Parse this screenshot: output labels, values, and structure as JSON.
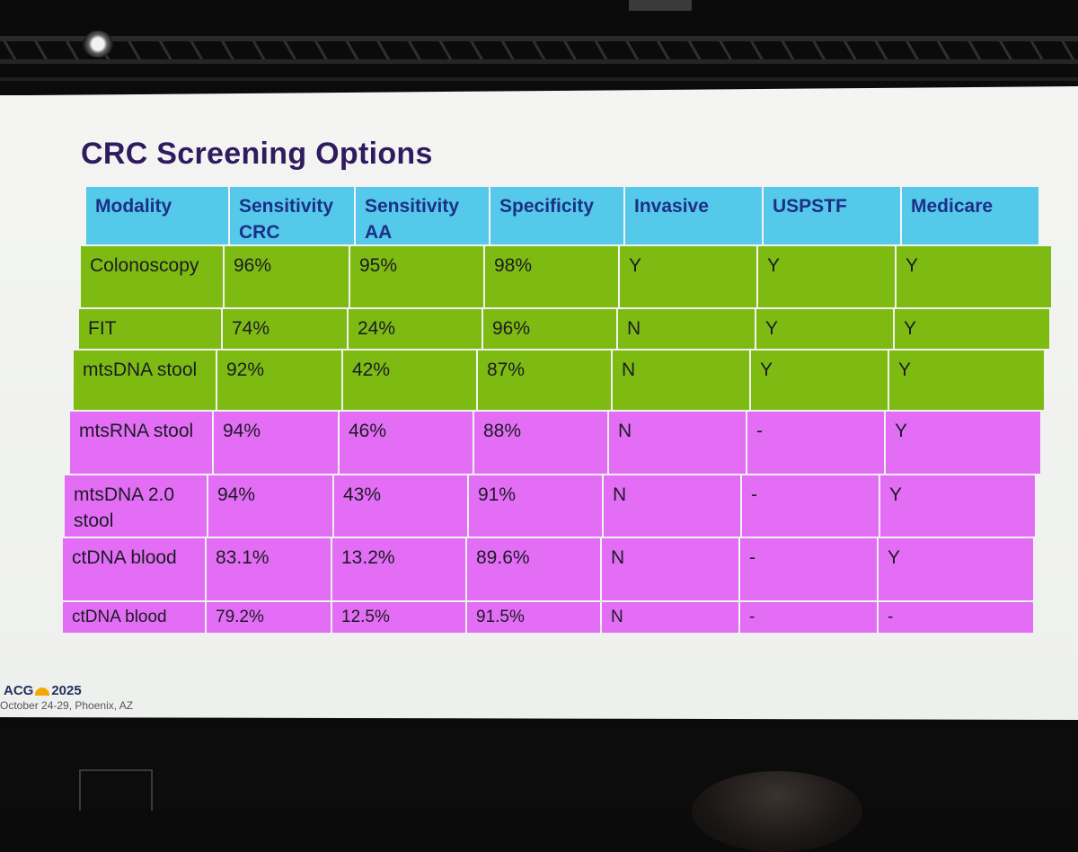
{
  "slide": {
    "title": "CRC Screening Options",
    "footer_logo": "ACG 2025",
    "footer_logo_left": "ACG",
    "footer_logo_year": "2025",
    "footer_sub": "October 24-29, Phoenix, AZ"
  },
  "table": {
    "headers": [
      "Modality",
      "Sensitivity CRC",
      "Sensitivity AA",
      "Specificity",
      "Invasive",
      "USPSTF",
      "Medicare"
    ],
    "rows": [
      {
        "group": "green",
        "cells": [
          "Colonoscopy",
          "96%",
          "95%",
          "98%",
          "Y",
          "Y",
          "Y"
        ]
      },
      {
        "group": "green",
        "cells": [
          "FIT",
          "74%",
          "24%",
          "96%",
          "N",
          "Y",
          "Y"
        ]
      },
      {
        "group": "green",
        "cells": [
          "mtsDNA stool",
          "92%",
          "42%",
          "87%",
          "N",
          "Y",
          "Y"
        ]
      },
      {
        "group": "pink",
        "cells": [
          "mtsRNA stool",
          "94%",
          "46%",
          "88%",
          "N",
          "-",
          "Y"
        ]
      },
      {
        "group": "pink",
        "cells": [
          "mtsDNA 2.0 stool",
          "94%",
          "43%",
          "91%",
          "N",
          "-",
          "Y"
        ]
      },
      {
        "group": "pink",
        "cells": [
          "ctDNA blood",
          "83.1%",
          "13.2%",
          "89.6%",
          "N",
          "-",
          "Y"
        ]
      },
      {
        "group": "pink",
        "cells": [
          "ctDNA blood",
          "79.2%",
          "12.5%",
          "91.5%",
          "N",
          "-",
          "-"
        ]
      }
    ]
  },
  "colors": {
    "header_bg": "#55c9ea",
    "header_text": "#1d2f87",
    "green_row": "#7dbb12",
    "pink_row": "#e36ef5",
    "title": "#2f1b5e"
  }
}
